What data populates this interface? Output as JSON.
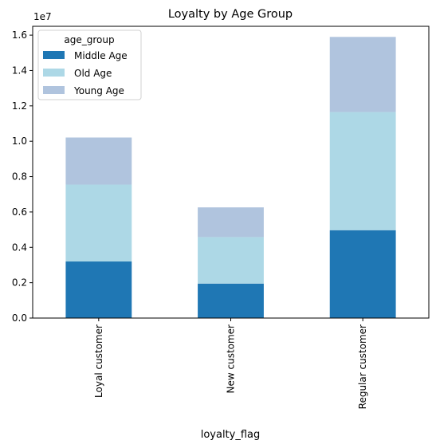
{
  "chart_data": {
    "type": "bar",
    "stacked": true,
    "title": "Loyalty by Age Group",
    "xlabel": "loyalty_flag",
    "ylabel": "",
    "y_offset_text": "1e7",
    "categories": [
      "Loyal customer",
      "New customer",
      "Regular customer"
    ],
    "series": [
      {
        "name": "Middle Age",
        "color": "#1f77b4",
        "values": [
          0.32,
          0.195,
          0.497
        ]
      },
      {
        "name": "Old Age",
        "color": "#add8e6",
        "values": [
          0.435,
          0.263,
          0.668
        ]
      },
      {
        "name": "Young Age",
        "color": "#b0c4de",
        "values": [
          0.266,
          0.168,
          0.425
        ]
      }
    ],
    "ylim": [
      0,
      1.65
    ],
    "yticks": [
      0.0,
      0.2,
      0.4,
      0.6,
      0.8,
      1.0,
      1.2,
      1.4,
      1.6
    ],
    "ytick_labels": [
      "0.0",
      "0.2",
      "0.4",
      "0.6",
      "0.8",
      "1.0",
      "1.2",
      "1.4",
      "1.6"
    ],
    "y_scale_factor": 10000000,
    "grid": false,
    "legend": {
      "title": "age_group",
      "placement": "upper-left"
    }
  }
}
